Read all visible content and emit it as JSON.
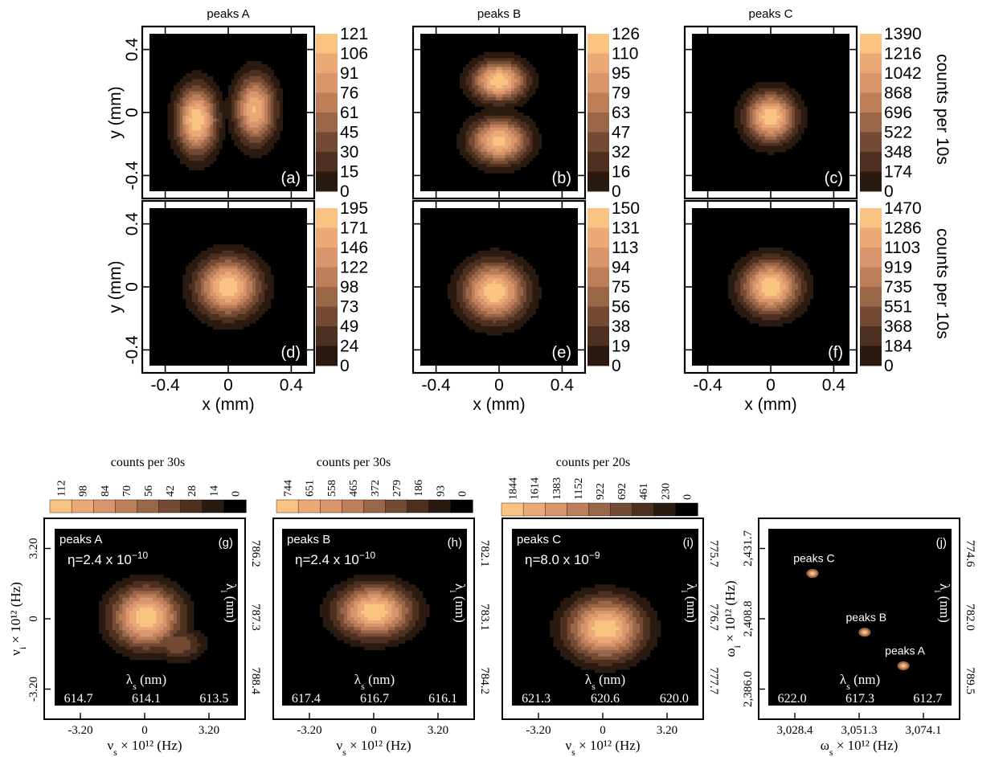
{
  "colors": {
    "cmap": [
      "#000000",
      "#2a1a10",
      "#4e3021",
      "#744a34",
      "#9a6648",
      "#bd7e5a",
      "#d9956b",
      "#eba978",
      "#f9c482"
    ],
    "frame": "#000000",
    "bg": "#ffffff"
  },
  "chart_data": [
    {
      "id": "a",
      "type": "heatmap",
      "title": "peaks A",
      "panel_label": "(a)",
      "ylabel": "y (mm)",
      "xlabel": "",
      "xlim": [
        -0.5,
        0.5
      ],
      "ylim": [
        -0.5,
        0.5
      ],
      "xticks": [
        "-0.4",
        "0",
        "0.4"
      ],
      "yticks": [
        "0.4",
        "0",
        "-0.4"
      ],
      "colorbar": [
        "121",
        "106",
        "91",
        "76",
        "61",
        "45",
        "30",
        "15",
        "0"
      ],
      "colorbar_label": "",
      "peaks": [
        {
          "x": -0.2,
          "y": -0.05,
          "sx": 0.09,
          "sy": 0.15,
          "amp": 121
        },
        {
          "x": 0.17,
          "y": 0.02,
          "sx": 0.09,
          "sy": 0.15,
          "amp": 110
        }
      ]
    },
    {
      "id": "b",
      "type": "heatmap",
      "title": "peaks B",
      "panel_label": "(b)",
      "ylabel": "",
      "xlabel": "",
      "xlim": [
        -0.5,
        0.5
      ],
      "ylim": [
        -0.5,
        0.5
      ],
      "xticks": [
        "-0.4",
        "0",
        "0.4"
      ],
      "yticks": [
        "0.4",
        "0",
        "-0.4"
      ],
      "colorbar": [
        "126",
        "110",
        "95",
        "79",
        "63",
        "47",
        "32",
        "16",
        "0"
      ],
      "colorbar_label": "",
      "peaks": [
        {
          "x": 0.0,
          "y": 0.2,
          "sx": 0.12,
          "sy": 0.09,
          "amp": 126
        },
        {
          "x": 0.0,
          "y": -0.18,
          "sx": 0.13,
          "sy": 0.1,
          "amp": 120
        }
      ]
    },
    {
      "id": "c",
      "type": "heatmap",
      "title": "peaks C",
      "panel_label": "(c)",
      "ylabel": "",
      "xlabel": "",
      "xlim": [
        -0.5,
        0.5
      ],
      "ylim": [
        -0.5,
        0.5
      ],
      "xticks": [
        "-0.4",
        "0",
        "0.4"
      ],
      "yticks": [
        "0.4",
        "0",
        "-0.4"
      ],
      "colorbar": [
        "1390",
        "1216",
        "1042",
        "868",
        "696",
        "522",
        "348",
        "174",
        "0"
      ],
      "colorbar_label": "counts per 10s",
      "peaks": [
        {
          "x": 0.0,
          "y": -0.03,
          "sx": 0.11,
          "sy": 0.11,
          "amp": 1390
        }
      ]
    },
    {
      "id": "d",
      "type": "heatmap",
      "title": "",
      "panel_label": "(d)",
      "ylabel": "y (mm)",
      "xlabel": "x (mm)",
      "xlim": [
        -0.5,
        0.5
      ],
      "ylim": [
        -0.5,
        0.5
      ],
      "xticks": [
        "-0.4",
        "0",
        "0.4"
      ],
      "yticks": [
        "0.4",
        "0",
        "-0.4"
      ],
      "colorbar": [
        "195",
        "171",
        "146",
        "122",
        "98",
        "73",
        "49",
        "24",
        "0"
      ],
      "colorbar_label": "",
      "peaks": [
        {
          "x": 0.0,
          "y": 0.0,
          "sx": 0.14,
          "sy": 0.13,
          "amp": 195
        }
      ]
    },
    {
      "id": "e",
      "type": "heatmap",
      "title": "",
      "panel_label": "(e)",
      "ylabel": "",
      "xlabel": "x (mm)",
      "xlim": [
        -0.5,
        0.5
      ],
      "ylim": [
        -0.5,
        0.5
      ],
      "xticks": [
        "-0.4",
        "0",
        "0.4"
      ],
      "yticks": [
        "0.4",
        "0",
        "-0.4"
      ],
      "colorbar": [
        "150",
        "131",
        "113",
        "94",
        "75",
        "56",
        "38",
        "19",
        "0"
      ],
      "colorbar_label": "",
      "peaks": [
        {
          "x": -0.03,
          "y": -0.03,
          "sx": 0.14,
          "sy": 0.13,
          "amp": 150
        }
      ]
    },
    {
      "id": "f",
      "type": "heatmap",
      "title": "",
      "panel_label": "(f)",
      "ylabel": "",
      "xlabel": "x (mm)",
      "xlim": [
        -0.5,
        0.5
      ],
      "ylim": [
        -0.5,
        0.5
      ],
      "xticks": [
        "-0.4",
        "0",
        "0.4"
      ],
      "yticks": [
        "0.4",
        "0",
        "-0.4"
      ],
      "colorbar": [
        "1470",
        "1286",
        "1103",
        "919",
        "735",
        "551",
        "368",
        "184",
        "0"
      ],
      "colorbar_label": "counts per 10s",
      "peaks": [
        {
          "x": 0.0,
          "y": 0.0,
          "sx": 0.13,
          "sy": 0.12,
          "amp": 1470
        }
      ]
    },
    {
      "id": "g",
      "type": "heatmap",
      "title": "",
      "inner_title": "peaks A",
      "panel_label": "(g)",
      "eta": "η=2.4 x 10",
      "eta_exp": "−10",
      "xlabel": "ν",
      "xlabel_sub": "s",
      "xlabel_rest": " × 10¹² (Hz)",
      "ylabel": "ν",
      "ylabel_sub": "i",
      "ylabel_rest": " × 10¹² (Hz)",
      "xticks": [
        "-3.20",
        "0",
        "3.20"
      ],
      "yticks": [
        "3.20",
        "0",
        "-3.20"
      ],
      "top_axis_label": "λ",
      "top_axis_sub": "s",
      "top_axis_rest": " (nm)",
      "top_ticks": [
        "614.7",
        "614.1",
        "613.5"
      ],
      "right_label": "λ",
      "right_sub": "i",
      "right_rest": " (nm)",
      "right_ticks": [
        "786.2",
        "787.3",
        "788.4"
      ],
      "colorbar": [
        "112",
        "98",
        "84",
        "70",
        "56",
        "42",
        "28",
        "14",
        "0"
      ],
      "colorbar_title": "counts per 30s",
      "xlim": [
        -4.6,
        4.6
      ],
      "ylim": [
        -4.6,
        4.6
      ],
      "peaks": [
        {
          "x": 0.0,
          "y": 0.0,
          "sx": 1.2,
          "sy": 1.1,
          "amp": 112
        },
        {
          "x": 1.6,
          "y": -1.4,
          "sx": 0.9,
          "sy": 0.6,
          "amp": 50
        }
      ]
    },
    {
      "id": "h",
      "type": "heatmap",
      "title": "",
      "inner_title": "peaks B",
      "panel_label": "(h)",
      "eta": "η=2.4 x 10",
      "eta_exp": "−10",
      "xlabel": "ν",
      "xlabel_sub": "s",
      "xlabel_rest": " × 10¹² (Hz)",
      "ylabel": "",
      "xticks": [
        "-3.20",
        "0",
        "3.20"
      ],
      "yticks": [],
      "top_axis_label": "λ",
      "top_axis_sub": "s",
      "top_axis_rest": " (nm)",
      "top_ticks": [
        "617.4",
        "616.7",
        "616.1"
      ],
      "right_label": "λ",
      "right_sub": "i",
      "right_rest": " (nm)",
      "right_ticks": [
        "782.1",
        "783.1",
        "784.2"
      ],
      "colorbar": [
        "744",
        "651",
        "558",
        "465",
        "372",
        "279",
        "186",
        "93",
        "0"
      ],
      "colorbar_title": "counts per 30s",
      "xlim": [
        -4.6,
        4.6
      ],
      "ylim": [
        -4.6,
        4.6
      ],
      "peaks": [
        {
          "x": 0.0,
          "y": 0.3,
          "sx": 1.3,
          "sy": 0.95,
          "amp": 744
        }
      ]
    },
    {
      "id": "i",
      "type": "heatmap",
      "title": "",
      "inner_title": "peaks C",
      "panel_label": "(i)",
      "eta": "η=8.0 x 10",
      "eta_exp": "−9",
      "xlabel": "ν",
      "xlabel_sub": "s",
      "xlabel_rest": " × 10¹² (Hz)",
      "ylabel": "",
      "xticks": [
        "-3.20",
        "0",
        "3.20"
      ],
      "yticks": [],
      "top_axis_label": "λ",
      "top_axis_sub": "s",
      "top_axis_rest": " (nm)",
      "top_ticks": [
        "621.3",
        "620.6",
        "620.0"
      ],
      "right_label": "λ",
      "right_sub": "i",
      "right_rest": " (nm)",
      "right_ticks": [
        "775.7",
        "776.7",
        "777.7"
      ],
      "colorbar": [
        "1844",
        "1614",
        "1383",
        "1152",
        "922",
        "692",
        "461",
        "230",
        "0"
      ],
      "colorbar_title": "counts per 20s",
      "xlim": [
        -4.6,
        4.6
      ],
      "ylim": [
        -4.6,
        4.6
      ],
      "peaks": [
        {
          "x": 0.0,
          "y": -0.6,
          "sx": 1.3,
          "sy": 1.1,
          "amp": 1844
        }
      ]
    },
    {
      "id": "j",
      "type": "scatter",
      "title": "",
      "panel_label": "(j)",
      "xlabel": "ω",
      "xlabel_sub": "s",
      "xlabel_rest": " × 10¹² (Hz)",
      "ylabel": "ω",
      "ylabel_sub": "i",
      "ylabel_rest": " × 10¹² (Hz)",
      "xticks": [
        "3,028.4",
        "3,051.3",
        "3,074.1"
      ],
      "yticks": [
        "2,431.7",
        "2,408.8",
        "2,386.0"
      ],
      "top_axis_label": "λ",
      "top_axis_sub": "s",
      "top_axis_rest": " (nm)",
      "top_ticks": [
        "622.0",
        "617.3",
        "612.7"
      ],
      "right_label": "λ",
      "right_sub": "i",
      "right_rest": " (nm)",
      "right_ticks": [
        "774.6",
        "782.0",
        "789.5"
      ],
      "xlim": [
        3017.0,
        3085.5
      ],
      "ylim": [
        2374.6,
        2443.1
      ],
      "points": [
        {
          "name": "peaks C",
          "x": 3033.5,
          "y": 2425.8
        },
        {
          "name": "peaks B",
          "x": 3053.0,
          "y": 2403.0
        },
        {
          "name": "peaks A",
          "x": 3067.5,
          "y": 2390.0
        }
      ]
    }
  ]
}
